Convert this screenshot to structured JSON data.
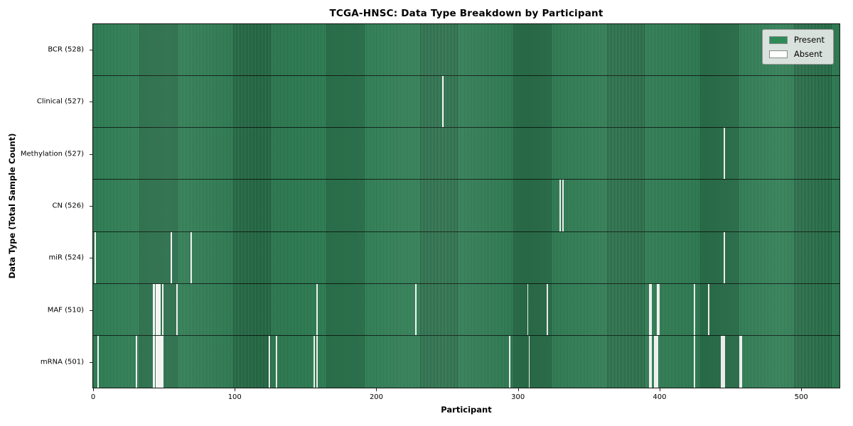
{
  "title": "TCGA-HNSC: Data Type Breakdown by Participant",
  "xlabel": "Participant",
  "ylabel": "Data Type (Total Sample Count)",
  "legend": {
    "present_label": "Present",
    "absent_label": "Absent"
  },
  "colors": {
    "present": "#2e8b57",
    "present_stripe_light": "#378b5f",
    "present_stripe_dark": "#1c4f34",
    "absent": "#ffffff",
    "absent_edge": "#cfd6cf",
    "row_divider": "#0a120c",
    "legend_bg": "#e7eae7",
    "axis": "#121212"
  },
  "x_ticks": [
    0,
    100,
    200,
    300,
    400,
    500
  ],
  "chart_data": {
    "type": "heatmap",
    "title": "TCGA-HNSC: Data Type Breakdown by Participant",
    "xlabel": "Participant",
    "ylabel": "Data Type (Total Sample Count)",
    "legend_entries": [
      "Present",
      "Absent"
    ],
    "legend_position": "upper right",
    "grid": false,
    "n_participants": 528,
    "x_range": [
      0,
      528
    ],
    "x_tick_values": [
      0,
      100,
      200,
      300,
      400,
      500
    ],
    "rows": [
      {
        "label": "BCR (528)",
        "total": 528,
        "absent_participants": []
      },
      {
        "label": "Clinical (527)",
        "total": 527,
        "absent_participants": [
          247
        ]
      },
      {
        "label": "Methylation (527)",
        "total": 527,
        "absent_participants": [
          446
        ]
      },
      {
        "label": "CN (526)",
        "total": 526,
        "absent_participants": [
          330,
          332
        ]
      },
      {
        "label": "miR (524)",
        "total": 524,
        "absent_participants": [
          1,
          55,
          69,
          446
        ]
      },
      {
        "label": "MAF (510)",
        "total": 510,
        "absent_participants": [
          42,
          43,
          44,
          45,
          46,
          47,
          49,
          59,
          158,
          228,
          307,
          321,
          393,
          394,
          399,
          400,
          425,
          435
        ]
      },
      {
        "label": "mRNA (501)",
        "total": 501,
        "absent_participants": [
          3,
          30,
          42,
          43,
          44,
          45,
          46,
          47,
          48,
          49,
          124,
          129,
          156,
          158,
          294,
          308,
          393,
          394,
          397,
          398,
          399,
          425,
          444,
          445,
          446,
          457,
          458
        ]
      }
    ]
  }
}
